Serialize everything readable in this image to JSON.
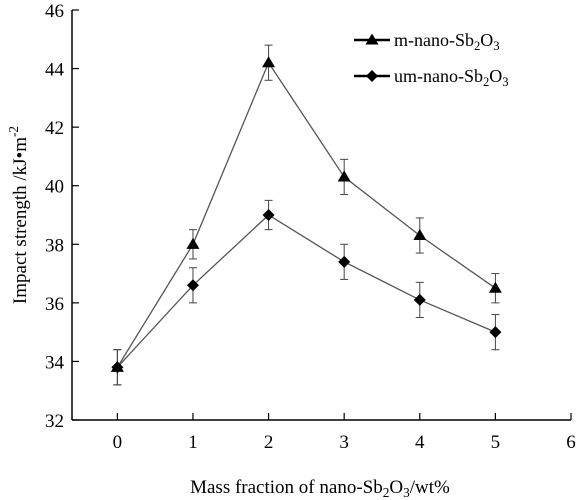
{
  "chart_data": {
    "type": "line",
    "title": "",
    "xlabel_parts": [
      "Mass fraction of nano-Sb",
      "2",
      "O",
      "3",
      "/wt%"
    ],
    "ylabel_parts": [
      "Impact strength /kJ•m",
      "-2"
    ],
    "xlim": [
      -0.6,
      6
    ],
    "ylim": [
      32,
      46
    ],
    "x_ticks": [
      0,
      1,
      2,
      3,
      4,
      5,
      6
    ],
    "y_ticks": [
      32,
      34,
      36,
      38,
      40,
      42,
      44,
      46
    ],
    "x_tick_labels": [
      "0",
      "1",
      "2",
      "3",
      "4",
      "5",
      "6"
    ],
    "y_tick_labels": [
      "32",
      "34",
      "36",
      "38",
      "40",
      "42",
      "44",
      "46"
    ],
    "grid": false,
    "legend_position": "top-right",
    "series": [
      {
        "name_parts": [
          "m-nano-Sb",
          "2",
          "O",
          "3"
        ],
        "marker": "triangle",
        "color": "#000000",
        "x": [
          0,
          1,
          2,
          3,
          4,
          5
        ],
        "y": [
          33.8,
          38.0,
          44.2,
          40.3,
          38.3,
          36.5
        ],
        "err": [
          0.6,
          0.5,
          0.6,
          0.6,
          0.6,
          0.5
        ]
      },
      {
        "name_parts": [
          "um-nano-Sb",
          "2",
          "O",
          "3"
        ],
        "marker": "diamond",
        "color": "#000000",
        "x": [
          0,
          1,
          2,
          3,
          4,
          5
        ],
        "y": [
          33.8,
          36.6,
          39.0,
          37.4,
          36.1,
          35.0
        ],
        "err": [
          0.6,
          0.6,
          0.5,
          0.6,
          0.6,
          0.6
        ]
      }
    ]
  }
}
